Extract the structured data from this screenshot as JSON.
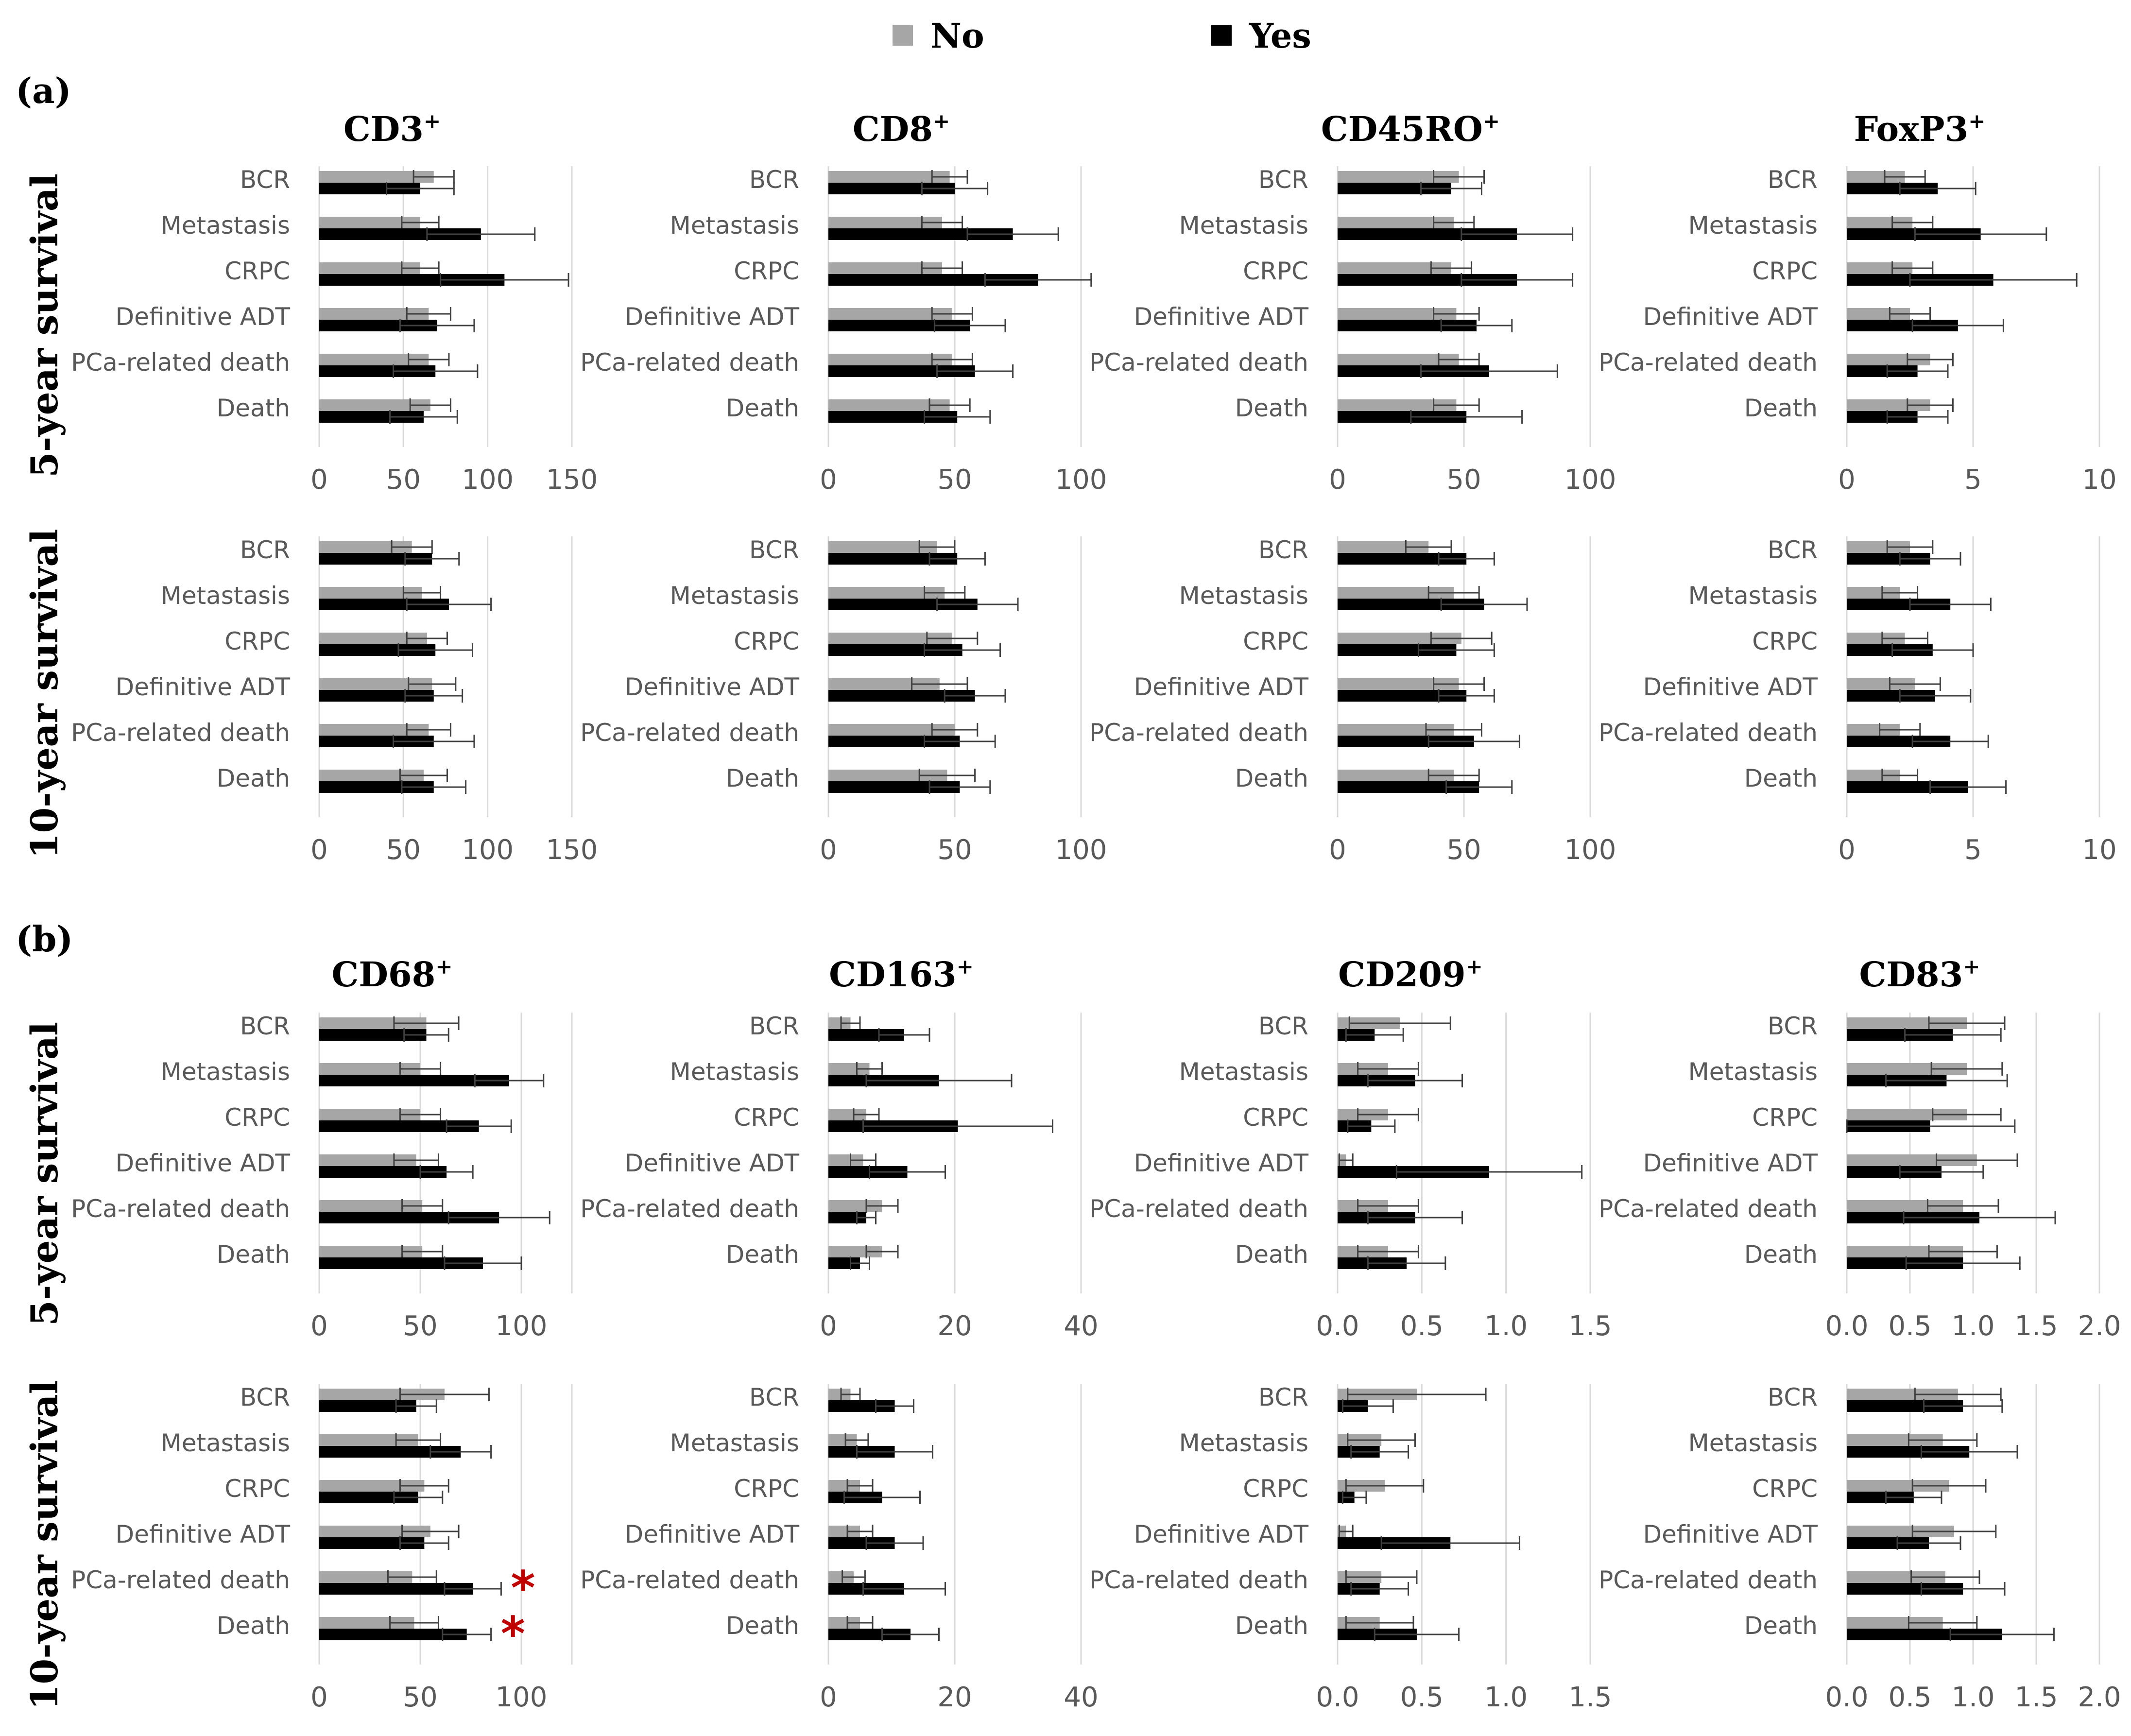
{
  "legend": {
    "items": [
      {
        "label": "No",
        "color": "#a6a6a6"
      },
      {
        "label": "Yes",
        "color": "#000000"
      }
    ]
  },
  "section_labels": [
    "(a)",
    "(b)",
    "(a)",
    "(b)"
  ],
  "row_titles": [
    "5-year survival",
    "10-year survival",
    "5-year survival",
    "10-year survival"
  ],
  "chart_data": [
    {
      "type": "bar",
      "orientation": "horizontal",
      "section": "(a)",
      "title": "CD3",
      "superscript": "+",
      "row": "5-year survival",
      "categories": [
        "BCR",
        "Metastasis",
        "CRPC",
        "Definitive ADT",
        "PCa-related death",
        "Death"
      ],
      "series": [
        {
          "name": "No",
          "values": [
            68,
            60,
            60,
            65,
            65,
            66
          ],
          "errors": [
            12,
            11,
            11,
            13,
            12,
            12
          ]
        },
        {
          "name": "Yes",
          "values": [
            60,
            96,
            110,
            70,
            69,
            62
          ],
          "errors": [
            20,
            32,
            38,
            22,
            25,
            20
          ]
        }
      ],
      "xlim": [
        0,
        150
      ],
      "xticks": [
        0,
        50,
        100,
        150
      ]
    },
    {
      "type": "bar",
      "orientation": "horizontal",
      "section": "(a)",
      "title": "CD8",
      "superscript": "+",
      "row": "5-year survival",
      "categories": [
        "BCR",
        "Metastasis",
        "CRPC",
        "Definitive ADT",
        "PCa-related death",
        "Death"
      ],
      "series": [
        {
          "name": "No",
          "values": [
            48,
            45,
            45,
            49,
            49,
            48
          ],
          "errors": [
            7,
            8,
            8,
            8,
            8,
            8
          ]
        },
        {
          "name": "Yes",
          "values": [
            50,
            73,
            83,
            56,
            58,
            51
          ],
          "errors": [
            13,
            18,
            21,
            14,
            15,
            13
          ]
        }
      ],
      "xlim": [
        0,
        100
      ],
      "xticks": [
        0,
        50,
        100
      ]
    },
    {
      "type": "bar",
      "orientation": "horizontal",
      "section": "(a)",
      "title": "CD45RO",
      "superscript": "+",
      "row": "5-year survival",
      "categories": [
        "BCR",
        "Metastasis",
        "CRPC",
        "Definitive ADT",
        "PCa-related death",
        "Death"
      ],
      "series": [
        {
          "name": "No",
          "values": [
            48,
            46,
            45,
            47,
            48,
            47
          ],
          "errors": [
            10,
            8,
            8,
            9,
            8,
            9
          ]
        },
        {
          "name": "Yes",
          "values": [
            45,
            71,
            71,
            55,
            60,
            51
          ],
          "errors": [
            12,
            22,
            22,
            14,
            27,
            22
          ]
        }
      ],
      "xlim": [
        0,
        100
      ],
      "xticks": [
        0,
        50,
        100
      ]
    },
    {
      "type": "bar",
      "orientation": "horizontal",
      "section": "(a)",
      "title": "FoxP3",
      "superscript": "+",
      "row": "5-year survival",
      "categories": [
        "BCR",
        "Metastasis",
        "CRPC",
        "Definitive ADT",
        "PCa-related death",
        "Death"
      ],
      "series": [
        {
          "name": "No",
          "values": [
            2.3,
            2.6,
            2.6,
            2.5,
            3.3,
            3.3
          ],
          "errors": [
            0.8,
            0.8,
            0.8,
            0.8,
            0.9,
            0.9
          ]
        },
        {
          "name": "Yes",
          "values": [
            3.6,
            5.3,
            5.8,
            4.4,
            2.8,
            2.8
          ],
          "errors": [
            1.5,
            2.6,
            3.3,
            1.8,
            1.2,
            1.2
          ]
        }
      ],
      "xlim": [
        0,
        10
      ],
      "xticks": [
        0,
        5,
        10
      ]
    },
    {
      "type": "bar",
      "orientation": "horizontal",
      "section": "(a)",
      "title": "CD3",
      "superscript": "+",
      "row": "10-year survival",
      "categories": [
        "BCR",
        "Metastasis",
        "CRPC",
        "Definitive ADT",
        "PCa-related death",
        "Death"
      ],
      "series": [
        {
          "name": "No",
          "values": [
            55,
            61,
            64,
            67,
            65,
            62
          ],
          "errors": [
            12,
            11,
            12,
            14,
            13,
            14
          ]
        },
        {
          "name": "Yes",
          "values": [
            67,
            77,
            69,
            68,
            68,
            68
          ],
          "errors": [
            16,
            25,
            22,
            17,
            24,
            19
          ]
        }
      ],
      "xlim": [
        0,
        150
      ],
      "xticks": [
        0,
        50,
        100,
        150
      ]
    },
    {
      "type": "bar",
      "orientation": "horizontal",
      "section": "(a)",
      "title": "CD8",
      "superscript": "+",
      "row": "10-year survival",
      "categories": [
        "BCR",
        "Metastasis",
        "CRPC",
        "Definitive ADT",
        "PCa-related death",
        "Death"
      ],
      "series": [
        {
          "name": "No",
          "values": [
            43,
            46,
            49,
            44,
            50,
            47
          ],
          "errors": [
            7,
            8,
            10,
            11,
            9,
            11
          ]
        },
        {
          "name": "Yes",
          "values": [
            51,
            59,
            53,
            58,
            52,
            52
          ],
          "errors": [
            11,
            16,
            15,
            12,
            14,
            12
          ]
        }
      ],
      "xlim": [
        0,
        100
      ],
      "xticks": [
        0,
        50,
        100
      ]
    },
    {
      "type": "bar",
      "orientation": "horizontal",
      "section": "(a)",
      "title": "CD45RO",
      "superscript": "+",
      "row": "10-year survival",
      "categories": [
        "BCR",
        "Metastasis",
        "CRPC",
        "Definitive ADT",
        "PCa-related death",
        "Death"
      ],
      "series": [
        {
          "name": "No",
          "values": [
            36,
            46,
            49,
            48,
            46,
            46
          ],
          "errors": [
            9,
            10,
            12,
            10,
            11,
            10
          ]
        },
        {
          "name": "Yes",
          "values": [
            51,
            58,
            47,
            51,
            54,
            56
          ],
          "errors": [
            11,
            17,
            15,
            11,
            18,
            13
          ]
        }
      ],
      "xlim": [
        0,
        100
      ],
      "xticks": [
        0,
        50,
        100
      ]
    },
    {
      "type": "bar",
      "orientation": "horizontal",
      "section": "(a)",
      "title": "FoxP3",
      "superscript": "+",
      "row": "10-year survival",
      "categories": [
        "BCR",
        "Metastasis",
        "CRPC",
        "Definitive ADT",
        "PCa-related death",
        "Death"
      ],
      "series": [
        {
          "name": "No",
          "values": [
            2.5,
            2.1,
            2.3,
            2.7,
            2.1,
            2.1
          ],
          "errors": [
            0.9,
            0.7,
            0.9,
            1.0,
            0.8,
            0.7
          ]
        },
        {
          "name": "Yes",
          "values": [
            3.3,
            4.1,
            3.4,
            3.5,
            4.1,
            4.8
          ],
          "errors": [
            1.2,
            1.6,
            1.6,
            1.4,
            1.5,
            1.5
          ]
        }
      ],
      "xlim": [
        0,
        10
      ],
      "xticks": [
        0,
        5,
        10
      ]
    },
    {
      "type": "bar",
      "orientation": "horizontal",
      "section": "(b)",
      "title": "CD68",
      "superscript": "+",
      "row": "5-year survival",
      "categories": [
        "BCR",
        "Metastasis",
        "CRPC",
        "Definitive ADT",
        "PCa-related death",
        "Death"
      ],
      "series": [
        {
          "name": "No",
          "values": [
            53,
            50,
            50,
            48,
            51,
            51
          ],
          "errors": [
            16,
            10,
            10,
            11,
            10,
            10
          ]
        },
        {
          "name": "Yes",
          "values": [
            53,
            94,
            79,
            63,
            89,
            81
          ],
          "errors": [
            11,
            17,
            16,
            13,
            25,
            19
          ]
        }
      ],
      "xlim": [
        0,
        125
      ],
      "xticks": [
        0,
        50,
        100
      ],
      "xticks_labels": [
        "0",
        "50",
        "100"
      ]
    },
    {
      "type": "bar",
      "orientation": "horizontal",
      "section": "(b)",
      "title": "CD163",
      "superscript": "+",
      "row": "5-year survival",
      "categories": [
        "BCR",
        "Metastasis",
        "CRPC",
        "Definitive ADT",
        "PCa-related death",
        "Death"
      ],
      "series": [
        {
          "name": "No",
          "values": [
            3.5,
            6.5,
            6.0,
            5.5,
            8.5,
            8.5
          ],
          "errors": [
            1.5,
            2.0,
            2.0,
            2.0,
            2.5,
            2.5
          ]
        },
        {
          "name": "Yes",
          "values": [
            12,
            17.5,
            20.5,
            12.5,
            6.0,
            5.0
          ],
          "errors": [
            4.0,
            11.5,
            15.0,
            6.0,
            1.5,
            1.5
          ]
        }
      ],
      "xlim": [
        0,
        40
      ],
      "xticks": [
        0,
        20,
        40
      ]
    },
    {
      "type": "bar",
      "orientation": "horizontal",
      "section": "(b)",
      "title": "CD209",
      "superscript": "+",
      "row": "5-year survival",
      "categories": [
        "BCR",
        "Metastasis",
        "CRPC",
        "Definitive ADT",
        "PCa-related death",
        "Death"
      ],
      "series": [
        {
          "name": "No",
          "values": [
            0.37,
            0.3,
            0.3,
            0.05,
            0.3,
            0.3
          ],
          "errors": [
            0.3,
            0.18,
            0.18,
            0.04,
            0.18,
            0.18
          ]
        },
        {
          "name": "Yes",
          "values": [
            0.22,
            0.46,
            0.2,
            0.9,
            0.46,
            0.41
          ],
          "errors": [
            0.17,
            0.28,
            0.14,
            0.55,
            0.28,
            0.23
          ]
        }
      ],
      "xlim": [
        0,
        1.5
      ],
      "xticks": [
        0.0,
        0.5,
        1.0,
        1.5
      ],
      "xticks_labels": [
        "0.0",
        "0.5",
        "1.0",
        "1.5"
      ]
    },
    {
      "type": "bar",
      "orientation": "horizontal",
      "section": "(b)",
      "title": "CD83",
      "superscript": "+",
      "row": "5-year survival",
      "categories": [
        "BCR",
        "Metastasis",
        "CRPC",
        "Definitive ADT",
        "PCa-related death",
        "Death"
      ],
      "series": [
        {
          "name": "No",
          "values": [
            0.95,
            0.95,
            0.95,
            1.03,
            0.92,
            0.92
          ],
          "errors": [
            0.3,
            0.28,
            0.27,
            0.32,
            0.28,
            0.27
          ]
        },
        {
          "name": "Yes",
          "values": [
            0.84,
            0.79,
            0.66,
            0.75,
            1.05,
            0.92
          ],
          "errors": [
            0.38,
            0.48,
            0.67,
            0.33,
            0.6,
            0.45
          ]
        }
      ],
      "xlim": [
        0,
        2.0
      ],
      "xticks": [
        0.0,
        0.5,
        1.0,
        1.5,
        2.0
      ],
      "xticks_labels": [
        "0.0",
        "0.5",
        "1.0",
        "1.5",
        "2.0"
      ]
    },
    {
      "type": "bar",
      "orientation": "horizontal",
      "section": "(b)",
      "title": "CD68",
      "superscript": "+",
      "row": "10-year survival",
      "categories": [
        "BCR",
        "Metastasis",
        "CRPC",
        "Definitive ADT",
        "PCa-related death",
        "Death"
      ],
      "series": [
        {
          "name": "No",
          "values": [
            62,
            49,
            52,
            55,
            46,
            47
          ],
          "errors": [
            22,
            11,
            12,
            14,
            12,
            12
          ]
        },
        {
          "name": "Yes",
          "values": [
            48,
            70,
            49,
            52,
            76,
            73
          ],
          "errors": [
            10,
            15,
            12,
            12,
            14,
            12
          ]
        }
      ],
      "xlim": [
        0,
        125
      ],
      "xticks": [
        0,
        50,
        100
      ],
      "xticks_labels": [
        "0",
        "50",
        "100"
      ],
      "significance": [
        {
          "category": "PCa-related death",
          "mark": "*",
          "color": "#c00000"
        },
        {
          "category": "Death",
          "mark": "*",
          "color": "#c00000"
        }
      ]
    },
    {
      "type": "bar",
      "orientation": "horizontal",
      "section": "(b)",
      "title": "CD163",
      "superscript": "+",
      "row": "10-year survival",
      "categories": [
        "BCR",
        "Metastasis",
        "CRPC",
        "Definitive ADT",
        "PCa-related death",
        "Death"
      ],
      "series": [
        {
          "name": "No",
          "values": [
            3.5,
            4.5,
            5.0,
            5.0,
            4.0,
            5.0
          ],
          "errors": [
            1.5,
            1.8,
            2.0,
            2.0,
            1.8,
            2.0
          ]
        },
        {
          "name": "Yes",
          "values": [
            10.5,
            10.5,
            8.5,
            10.5,
            12.0,
            13.0
          ],
          "errors": [
            3.0,
            6.0,
            6.0,
            4.5,
            6.5,
            4.5
          ]
        }
      ],
      "xlim": [
        0,
        40
      ],
      "xticks": [
        0,
        20,
        40
      ]
    },
    {
      "type": "bar",
      "orientation": "horizontal",
      "section": "(b)",
      "title": "CD209",
      "superscript": "+",
      "row": "10-year survival",
      "categories": [
        "BCR",
        "Metastasis",
        "CRPC",
        "Definitive ADT",
        "PCa-related death",
        "Death"
      ],
      "series": [
        {
          "name": "No",
          "values": [
            0.47,
            0.26,
            0.28,
            0.05,
            0.26,
            0.25
          ],
          "errors": [
            0.41,
            0.2,
            0.23,
            0.04,
            0.21,
            0.2
          ]
        },
        {
          "name": "Yes",
          "values": [
            0.18,
            0.25,
            0.1,
            0.67,
            0.25,
            0.47
          ],
          "errors": [
            0.15,
            0.17,
            0.07,
            0.41,
            0.17,
            0.25
          ]
        }
      ],
      "xlim": [
        0,
        1.5
      ],
      "xticks": [
        0.0,
        0.5,
        1.0,
        1.5
      ],
      "xticks_labels": [
        "0.0",
        "0.5",
        "1.0",
        "1.5"
      ]
    },
    {
      "type": "bar",
      "orientation": "horizontal",
      "section": "(b)",
      "title": "CD83",
      "superscript": "+",
      "row": "10-year survival",
      "categories": [
        "BCR",
        "Metastasis",
        "CRPC",
        "Definitive ADT",
        "PCa-related death",
        "Death"
      ],
      "series": [
        {
          "name": "No",
          "values": [
            0.88,
            0.76,
            0.81,
            0.85,
            0.78,
            0.76
          ],
          "errors": [
            0.34,
            0.27,
            0.29,
            0.33,
            0.27,
            0.27
          ]
        },
        {
          "name": "Yes",
          "values": [
            0.92,
            0.97,
            0.53,
            0.65,
            0.92,
            1.23
          ],
          "errors": [
            0.31,
            0.38,
            0.22,
            0.25,
            0.33,
            0.41
          ]
        }
      ],
      "xlim": [
        0,
        2.0
      ],
      "xticks": [
        0.0,
        0.5,
        1.0,
        1.5,
        2.0
      ],
      "xticks_labels": [
        "0.0",
        "0.5",
        "1.0",
        "1.5",
        "2.0"
      ]
    }
  ]
}
